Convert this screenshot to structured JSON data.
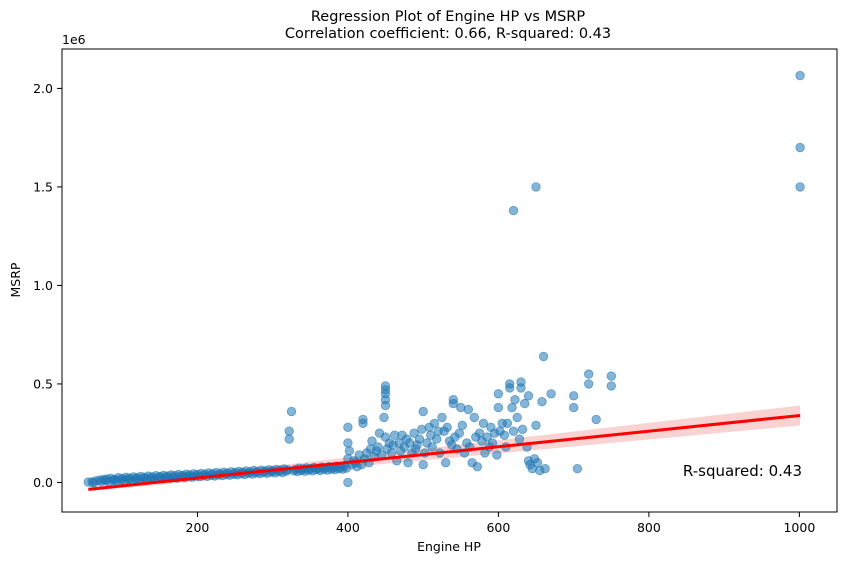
{
  "chart_data": {
    "type": "scatter",
    "title": "Regression Plot of Engine HP vs MSRP",
    "subtitle": "Correlation coefficient: 0.66, R-squared: 0.43",
    "xlabel": "Engine HP",
    "ylabel": "MSRP",
    "y_scale_label": "1e6",
    "xlim": [
      20,
      1050
    ],
    "ylim": [
      -150000,
      2200000
    ],
    "x_ticks": [
      200,
      400,
      600,
      800,
      1000
    ],
    "x_tick_labels": [
      "200",
      "400",
      "600",
      "800",
      "1000"
    ],
    "y_ticks": [
      0,
      500000,
      1000000,
      1500000,
      2000000
    ],
    "y_tick_labels": [
      "0.0",
      "0.5",
      "1.0",
      "1.5",
      "2.0"
    ],
    "annotation": "R-squared: 0.43",
    "grid": false,
    "colors": {
      "points": "#1f77b4",
      "regression_line": "#ff0000",
      "confidence_band": "#f4a6a6"
    },
    "regression": {
      "x": [
        55,
        1001
      ],
      "y": [
        -35000,
        340000
      ]
    },
    "points": [
      [
        55,
        2000
      ],
      [
        60,
        3000
      ],
      [
        62,
        -2000
      ],
      [
        65,
        8000
      ],
      [
        70,
        12000
      ],
      [
        72,
        5000
      ],
      [
        75,
        15000
      ],
      [
        78,
        9000
      ],
      [
        80,
        18000
      ],
      [
        82,
        4000
      ],
      [
        85,
        21000
      ],
      [
        88,
        11000
      ],
      [
        90,
        16000
      ],
      [
        92,
        7000
      ],
      [
        95,
        24000
      ],
      [
        98,
        13000
      ],
      [
        100,
        20000
      ],
      [
        103,
        9000
      ],
      [
        105,
        26000
      ],
      [
        108,
        15000
      ],
      [
        110,
        22000
      ],
      [
        113,
        11000
      ],
      [
        115,
        28000
      ],
      [
        118,
        17000
      ],
      [
        120,
        24000
      ],
      [
        123,
        13000
      ],
      [
        125,
        30000
      ],
      [
        128,
        19000
      ],
      [
        130,
        26000
      ],
      [
        133,
        15000
      ],
      [
        135,
        32000
      ],
      [
        138,
        21000
      ],
      [
        140,
        28000
      ],
      [
        143,
        17000
      ],
      [
        145,
        34000
      ],
      [
        148,
        23000
      ],
      [
        150,
        30000
      ],
      [
        153,
        19000
      ],
      [
        155,
        36000
      ],
      [
        158,
        25000
      ],
      [
        160,
        32000
      ],
      [
        163,
        21000
      ],
      [
        165,
        38000
      ],
      [
        168,
        27000
      ],
      [
        170,
        34000
      ],
      [
        173,
        23000
      ],
      [
        175,
        40000
      ],
      [
        178,
        29000
      ],
      [
        180,
        36000
      ],
      [
        183,
        25000
      ],
      [
        185,
        42000
      ],
      [
        188,
        31000
      ],
      [
        190,
        38000
      ],
      [
        193,
        27000
      ],
      [
        195,
        44000
      ],
      [
        198,
        33000
      ],
      [
        200,
        40000
      ],
      [
        203,
        29000
      ],
      [
        205,
        46000
      ],
      [
        208,
        35000
      ],
      [
        210,
        42000
      ],
      [
        213,
        31000
      ],
      [
        215,
        48000
      ],
      [
        218,
        37000
      ],
      [
        220,
        44000
      ],
      [
        223,
        33000
      ],
      [
        225,
        50000
      ],
      [
        228,
        39000
      ],
      [
        230,
        46000
      ],
      [
        233,
        35000
      ],
      [
        235,
        52000
      ],
      [
        238,
        41000
      ],
      [
        240,
        48000
      ],
      [
        243,
        37000
      ],
      [
        245,
        54000
      ],
      [
        248,
        43000
      ],
      [
        250,
        50000
      ],
      [
        253,
        39000
      ],
      [
        255,
        56000
      ],
      [
        258,
        45000
      ],
      [
        260,
        52000
      ],
      [
        263,
        41000
      ],
      [
        265,
        58000
      ],
      [
        268,
        47000
      ],
      [
        270,
        54000
      ],
      [
        273,
        43000
      ],
      [
        275,
        60000
      ],
      [
        278,
        49000
      ],
      [
        280,
        56000
      ],
      [
        283,
        45000
      ],
      [
        285,
        62000
      ],
      [
        288,
        51000
      ],
      [
        290,
        58000
      ],
      [
        293,
        47000
      ],
      [
        295,
        64000
      ],
      [
        298,
        53000
      ],
      [
        300,
        60000
      ],
      [
        303,
        49000
      ],
      [
        305,
        66000
      ],
      [
        308,
        55000
      ],
      [
        310,
        62000
      ],
      [
        313,
        51000
      ],
      [
        315,
        68000
      ],
      [
        318,
        57000
      ],
      [
        320,
        64000
      ],
      [
        322,
        220000
      ],
      [
        322,
        260000
      ],
      [
        325,
        360000
      ],
      [
        328,
        59000
      ],
      [
        330,
        66000
      ],
      [
        333,
        55000
      ],
      [
        335,
        72000
      ],
      [
        338,
        61000
      ],
      [
        340,
        68000
      ],
      [
        343,
        57000
      ],
      [
        345,
        74000
      ],
      [
        348,
        63000
      ],
      [
        350,
        70000
      ],
      [
        353,
        59000
      ],
      [
        355,
        76000
      ],
      [
        358,
        65000
      ],
      [
        360,
        72000
      ],
      [
        363,
        61000
      ],
      [
        365,
        78000
      ],
      [
        368,
        67000
      ],
      [
        370,
        74000
      ],
      [
        373,
        63000
      ],
      [
        375,
        80000
      ],
      [
        378,
        69000
      ],
      [
        380,
        76000
      ],
      [
        383,
        65000
      ],
      [
        385,
        82000
      ],
      [
        388,
        71000
      ],
      [
        390,
        78000
      ],
      [
        393,
        67000
      ],
      [
        395,
        84000
      ],
      [
        398,
        73000
      ],
      [
        400,
        0
      ],
      [
        400,
        120000
      ],
      [
        400,
        200000
      ],
      [
        400,
        280000
      ],
      [
        402,
        160000
      ],
      [
        405,
        90000
      ],
      [
        408,
        110000
      ],
      [
        410,
        100000
      ],
      [
        412,
        80000
      ],
      [
        415,
        140000
      ],
      [
        418,
        90000
      ],
      [
        420,
        300000
      ],
      [
        420,
        320000
      ],
      [
        422,
        120000
      ],
      [
        425,
        150000
      ],
      [
        428,
        100000
      ],
      [
        430,
        170000
      ],
      [
        432,
        210000
      ],
      [
        435,
        130000
      ],
      [
        438,
        160000
      ],
      [
        440,
        180000
      ],
      [
        442,
        250000
      ],
      [
        445,
        140000
      ],
      [
        448,
        330000
      ],
      [
        450,
        230000
      ],
      [
        450,
        390000
      ],
      [
        450,
        420000
      ],
      [
        450,
        450000
      ],
      [
        450,
        470000
      ],
      [
        450,
        490000
      ],
      [
        452,
        170000
      ],
      [
        455,
        200000
      ],
      [
        458,
        150000
      ],
      [
        460,
        190000
      ],
      [
        462,
        240000
      ],
      [
        465,
        110000
      ],
      [
        468,
        200000
      ],
      [
        470,
        160000
      ],
      [
        472,
        240000
      ],
      [
        475,
        180000
      ],
      [
        478,
        220000
      ],
      [
        480,
        100000
      ],
      [
        482,
        200000
      ],
      [
        485,
        150000
      ],
      [
        488,
        250000
      ],
      [
        490,
        170000
      ],
      [
        492,
        190000
      ],
      [
        495,
        220000
      ],
      [
        498,
        270000
      ],
      [
        500,
        360000
      ],
      [
        500,
        90000
      ],
      [
        502,
        150000
      ],
      [
        505,
        200000
      ],
      [
        508,
        280000
      ],
      [
        510,
        240000
      ],
      [
        512,
        180000
      ],
      [
        515,
        300000
      ],
      [
        518,
        220000
      ],
      [
        520,
        260000
      ],
      [
        522,
        150000
      ],
      [
        525,
        330000
      ],
      [
        528,
        260000
      ],
      [
        530,
        100000
      ],
      [
        532,
        280000
      ],
      [
        535,
        210000
      ],
      [
        538,
        190000
      ],
      [
        540,
        400000
      ],
      [
        540,
        420000
      ],
      [
        542,
        230000
      ],
      [
        545,
        170000
      ],
      [
        548,
        250000
      ],
      [
        550,
        380000
      ],
      [
        552,
        290000
      ],
      [
        555,
        150000
      ],
      [
        558,
        200000
      ],
      [
        560,
        370000
      ],
      [
        562,
        180000
      ],
      [
        565,
        100000
      ],
      [
        568,
        330000
      ],
      [
        570,
        230000
      ],
      [
        572,
        80000
      ],
      [
        575,
        250000
      ],
      [
        578,
        210000
      ],
      [
        580,
        300000
      ],
      [
        582,
        150000
      ],
      [
        585,
        230000
      ],
      [
        588,
        180000
      ],
      [
        590,
        280000
      ],
      [
        592,
        200000
      ],
      [
        595,
        250000
      ],
      [
        598,
        140000
      ],
      [
        600,
        380000
      ],
      [
        600,
        450000
      ],
      [
        602,
        260000
      ],
      [
        605,
        300000
      ],
      [
        608,
        240000
      ],
      [
        610,
        180000
      ],
      [
        612,
        300000
      ],
      [
        615,
        480000
      ],
      [
        615,
        500000
      ],
      [
        618,
        380000
      ],
      [
        620,
        1380000
      ],
      [
        620,
        260000
      ],
      [
        622,
        420000
      ],
      [
        625,
        330000
      ],
      [
        628,
        220000
      ],
      [
        630,
        480000
      ],
      [
        630,
        510000
      ],
      [
        632,
        270000
      ],
      [
        635,
        400000
      ],
      [
        638,
        180000
      ],
      [
        640,
        440000
      ],
      [
        640,
        110000
      ],
      [
        642,
        90000
      ],
      [
        645,
        70000
      ],
      [
        648,
        120000
      ],
      [
        650,
        1500000
      ],
      [
        650,
        290000
      ],
      [
        652,
        100000
      ],
      [
        655,
        60000
      ],
      [
        658,
        410000
      ],
      [
        660,
        640000
      ],
      [
        662,
        70000
      ],
      [
        670,
        450000
      ],
      [
        700,
        380000
      ],
      [
        700,
        440000
      ],
      [
        705,
        70000
      ],
      [
        720,
        500000
      ],
      [
        720,
        550000
      ],
      [
        730,
        320000
      ],
      [
        750,
        490000
      ],
      [
        750,
        540000
      ],
      [
        1001,
        1500000
      ],
      [
        1001,
        1700000
      ],
      [
        1001,
        2065000
      ]
    ]
  }
}
